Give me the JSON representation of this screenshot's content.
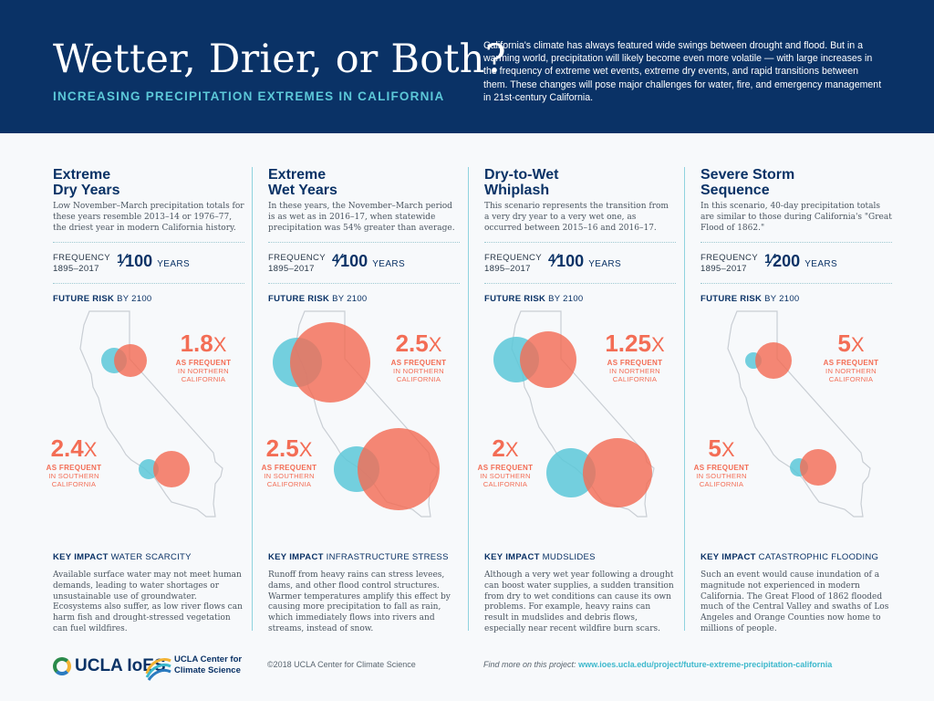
{
  "header": {
    "title": "Wetter, Drier, or Both?",
    "subtitle": "INCREASING PRECIPITATION EXTREMES IN CALIFORNIA",
    "intro": "California's climate has always featured wide swings between drought and flood. But in a warming world, precipitation will likely become even more volatile — with large increases in the frequency of extreme wet events, extreme dry events, and rapid transitions between them. These changes will pose major challenges for water, fire, and emergency management in 21st-century California."
  },
  "labels": {
    "frequency_1": "FREQUENCY",
    "frequency_2": "1895–2017",
    "years": "YEARS",
    "future": "FUTURE RISK",
    "by2100": "BY 2100",
    "as_frequent": "AS FREQUENT",
    "in_northern": "IN NORTHERN",
    "in_southern": "IN SOUTHERN",
    "california": "CALIFORNIA",
    "key_impact": "KEY IMPACT",
    "x": "X"
  },
  "colors": {
    "navy": "#0a3266",
    "teal": "#5cc8d8",
    "coral": "#f36d55"
  },
  "columns": [
    {
      "title1": "Extreme",
      "title2": "Dry Years",
      "desc": "Low November–March precipitation totals for these years resemble 2013–14 or 1976–77, the driest year in modern California history.",
      "freq_num": "1",
      "freq_den": "100",
      "north_mult": "1.8",
      "south_mult": "2.4",
      "impact": "WATER SCARCITY",
      "impact_desc": "Available surface water may not meet human demands, leading to water shortages or unsustainable use of groundwater. Ecosystems also suffer, as low river flows can harm fish and drought-stressed vegetation can fuel wildfires."
    },
    {
      "title1": "Extreme",
      "title2": "Wet Years",
      "desc": "In these years, the November–March period is as wet as in 2016–17, when statewide precipitation was 54% greater than average.",
      "freq_num": "4",
      "freq_den": "100",
      "north_mult": "2.5",
      "south_mult": "2.5",
      "impact": "INFRASTRUCTURE STRESS",
      "impact_desc": "Runoff from heavy rains can stress levees, dams, and other flood control structures. Warmer temperatures amplify this effect by causing more precipitation to fall as rain, which immediately flows into rivers and streams, instead of snow."
    },
    {
      "title1": "Dry-to-Wet",
      "title2": "Whiplash",
      "desc": "This scenario represents the transition from a very dry year to a very wet one, as occurred between 2015–16 and 2016–17.",
      "freq_num": "4",
      "freq_den": "100",
      "north_mult": "1.25",
      "south_mult": "2",
      "impact": "MUDSLIDES",
      "impact_desc": "Although a very wet year following a drought can boost water supplies, a sudden transition from dry to wet conditions can cause its own problems. For example, heavy rains can result in mudslides and debris flows, especially near recent wildfire burn scars."
    },
    {
      "title1": "Severe Storm",
      "title2": "Sequence",
      "desc": "In this scenario, 40-day precipitation totals are similar to those during California's \"Great Flood of 1862.\"",
      "freq_num": "1",
      "freq_den": "200",
      "north_mult": "5",
      "south_mult": "5",
      "impact": "CATASTROPHIC FLOODING",
      "impact_desc": "Such an event would cause inundation of a magnitude not experienced in modern California. The Great Flood of 1862 flooded much of the Central Valley and swaths of Los Angeles and Orange Counties now home to millions of people."
    }
  ],
  "footer": {
    "logo1": "UCLA IoES",
    "logo2_line1": "UCLA Center for",
    "logo2_line2": "Climate Science",
    "copyright": "©2018 UCLA Center for Climate Science",
    "findmore_label": "Find more on this project:",
    "findmore_url": "www.ioes.ucla.edu/project/future-extreme-precipitation-california"
  }
}
